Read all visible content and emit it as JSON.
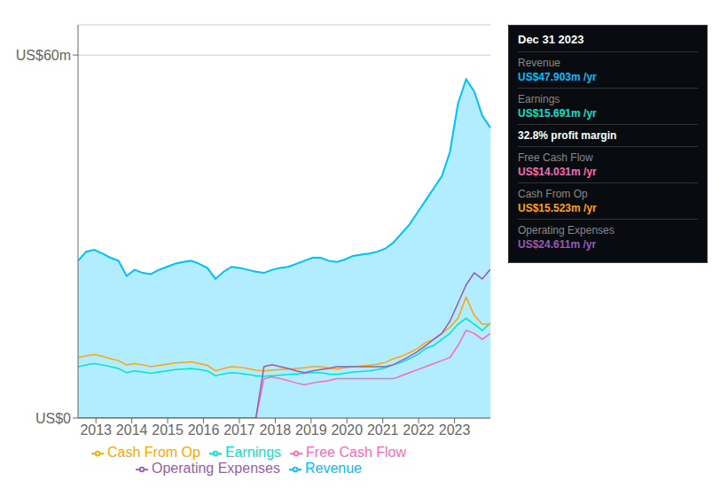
{
  "chart_data": {
    "type": "line",
    "title": "Dec 31 2023",
    "x": [
      2012.5,
      2012.72549,
      2012.95098,
      2013.176471,
      2013.401961,
      2013.627451,
      2013.852941,
      2014.078431,
      2014.303922,
      2014.529412,
      2014.754902,
      2014.980392,
      2015.205882,
      2015.431373,
      2015.656863,
      2015.882353,
      2016.107843,
      2016.333333,
      2016.558824,
      2016.784314,
      2017.009804,
      2017.235294,
      2017.460784,
      2017.686275,
      2017.911765,
      2018.137255,
      2018.362745,
      2018.588235,
      2018.813725,
      2019.039216,
      2019.264706,
      2019.490196,
      2019.715686,
      2019.941176,
      2020.166667,
      2020.392157,
      2020.617647,
      2020.843137,
      2021.068627,
      2021.294118,
      2021.519608,
      2021.745098,
      2021.970588,
      2022.196078,
      2022.421569,
      2022.647059,
      2022.872549,
      2023.098039,
      2023.323529,
      2023.54902,
      2023.77451,
      2024.0
    ],
    "series": [
      {
        "name": "Revenue",
        "color": "#00bfff",
        "type": "area",
        "values": [
          26,
          27.5,
          27.8,
          27.2,
          26.5,
          26.0,
          23.5,
          24.5,
          24.0,
          23.8,
          24.5,
          25.0,
          25.5,
          25.8,
          26.0,
          25.5,
          24.8,
          23.0,
          24.2,
          25.0,
          24.8,
          24.5,
          24.2,
          24.0,
          24.5,
          24.8,
          25.0,
          25.5,
          26.0,
          26.5,
          26.5,
          26.0,
          25.8,
          26.2,
          26.8,
          27.0,
          27.2,
          27.5,
          28.0,
          29.0,
          30.5,
          32.0,
          34.0,
          36.0,
          38.0,
          40.0,
          44.0,
          52.0,
          56.0,
          54.0,
          50.0,
          48.0
        ]
      },
      {
        "name": "Earnings",
        "color": "#00e5cc",
        "type": "line",
        "values": [
          8.5,
          8.8,
          9.0,
          8.8,
          8.5,
          8.2,
          7.5,
          7.8,
          7.6,
          7.4,
          7.6,
          7.8,
          8.0,
          8.1,
          8.2,
          8.0,
          7.8,
          7.0,
          7.3,
          7.5,
          7.4,
          7.2,
          7.0,
          6.9,
          7.0,
          7.1,
          7.2,
          7.3,
          7.4,
          7.5,
          7.5,
          7.3,
          7.2,
          7.4,
          7.6,
          7.7,
          7.8,
          8.0,
          8.3,
          8.8,
          9.2,
          9.8,
          10.5,
          11.5,
          12.0,
          13.0,
          14.0,
          15.5,
          16.5,
          15.5,
          14.5,
          15.7
        ]
      },
      {
        "name": "Free Cash Flow",
        "color": "#ff69b4",
        "type": "line",
        "values": [
          0,
          0,
          0,
          0,
          0,
          0,
          0,
          0,
          0,
          0,
          0,
          0,
          0,
          0,
          0,
          0,
          0,
          0,
          0,
          0,
          0,
          0,
          0,
          6.5,
          6.8,
          6.5,
          6.2,
          5.8,
          5.5,
          5.8,
          6.0,
          6.2,
          6.5,
          6.5,
          6.5,
          6.5,
          6.5,
          6.5,
          6.5,
          6.5,
          7.0,
          7.5,
          8.0,
          8.5,
          9.0,
          9.5,
          10.0,
          12.0,
          14.5,
          14.0,
          13.0,
          14.0
        ]
      },
      {
        "name": "Cash From Op",
        "color": "#ffa500",
        "type": "line",
        "values": [
          10.0,
          10.3,
          10.5,
          10.2,
          9.8,
          9.5,
          8.8,
          9.0,
          8.8,
          8.5,
          8.7,
          8.9,
          9.1,
          9.2,
          9.3,
          9.0,
          8.7,
          7.8,
          8.2,
          8.5,
          8.4,
          8.2,
          7.9,
          7.8,
          7.9,
          8.0,
          8.1,
          8.2,
          8.3,
          8.5,
          8.5,
          8.3,
          8.1,
          8.3,
          8.5,
          8.6,
          8.7,
          8.9,
          9.2,
          9.8,
          10.2,
          10.8,
          11.5,
          12.5,
          13.0,
          14.0,
          15.0,
          16.5,
          20.0,
          17.0,
          15.5,
          15.5
        ]
      },
      {
        "name": "Operating Expenses",
        "color": "#9b59b6",
        "type": "line",
        "values": [
          0,
          0,
          0,
          0,
          0,
          0,
          0,
          0,
          0,
          0,
          0,
          0,
          0,
          0,
          0,
          0,
          0,
          0,
          0,
          0,
          0,
          0,
          0,
          8.5,
          8.8,
          8.5,
          8.2,
          7.8,
          7.5,
          7.8,
          8.0,
          8.2,
          8.5,
          8.5,
          8.5,
          8.5,
          8.5,
          8.5,
          8.5,
          8.8,
          9.5,
          10.2,
          11.0,
          12.0,
          13.0,
          14.0,
          16.0,
          19.0,
          22.0,
          24.0,
          23.0,
          24.6
        ]
      }
    ],
    "xlim": [
      2012.5,
      2024.0
    ],
    "xticks": [
      2013,
      2014,
      2015,
      2016,
      2017,
      2018,
      2019,
      2020,
      2021,
      2022,
      2023
    ],
    "ylim": [
      0,
      65
    ],
    "yticks": [
      {
        "value": 0,
        "label": "US$0"
      },
      {
        "value": 60,
        "label": "US$60m"
      }
    ],
    "grid": true,
    "legend": "bottom",
    "annotations": [
      {
        "label": "Revenue",
        "text": "US$47.903m /yr",
        "color": "#00bfff"
      },
      {
        "label": "Earnings",
        "text": "US$15.691m /yr",
        "color": "#00e5cc"
      },
      {
        "text": "32.8% profit margin",
        "color": "#ffffff"
      },
      {
        "label": "Free Cash Flow",
        "text": "US$14.031m /yr",
        "color": "#ff69b4"
      },
      {
        "label": "Cash From Op",
        "text": "US$15.523m /yr",
        "color": "#ffa500"
      },
      {
        "label": "Operating Expenses",
        "text": "US$24.611m /yr",
        "color": "#9b59b6"
      }
    ]
  }
}
